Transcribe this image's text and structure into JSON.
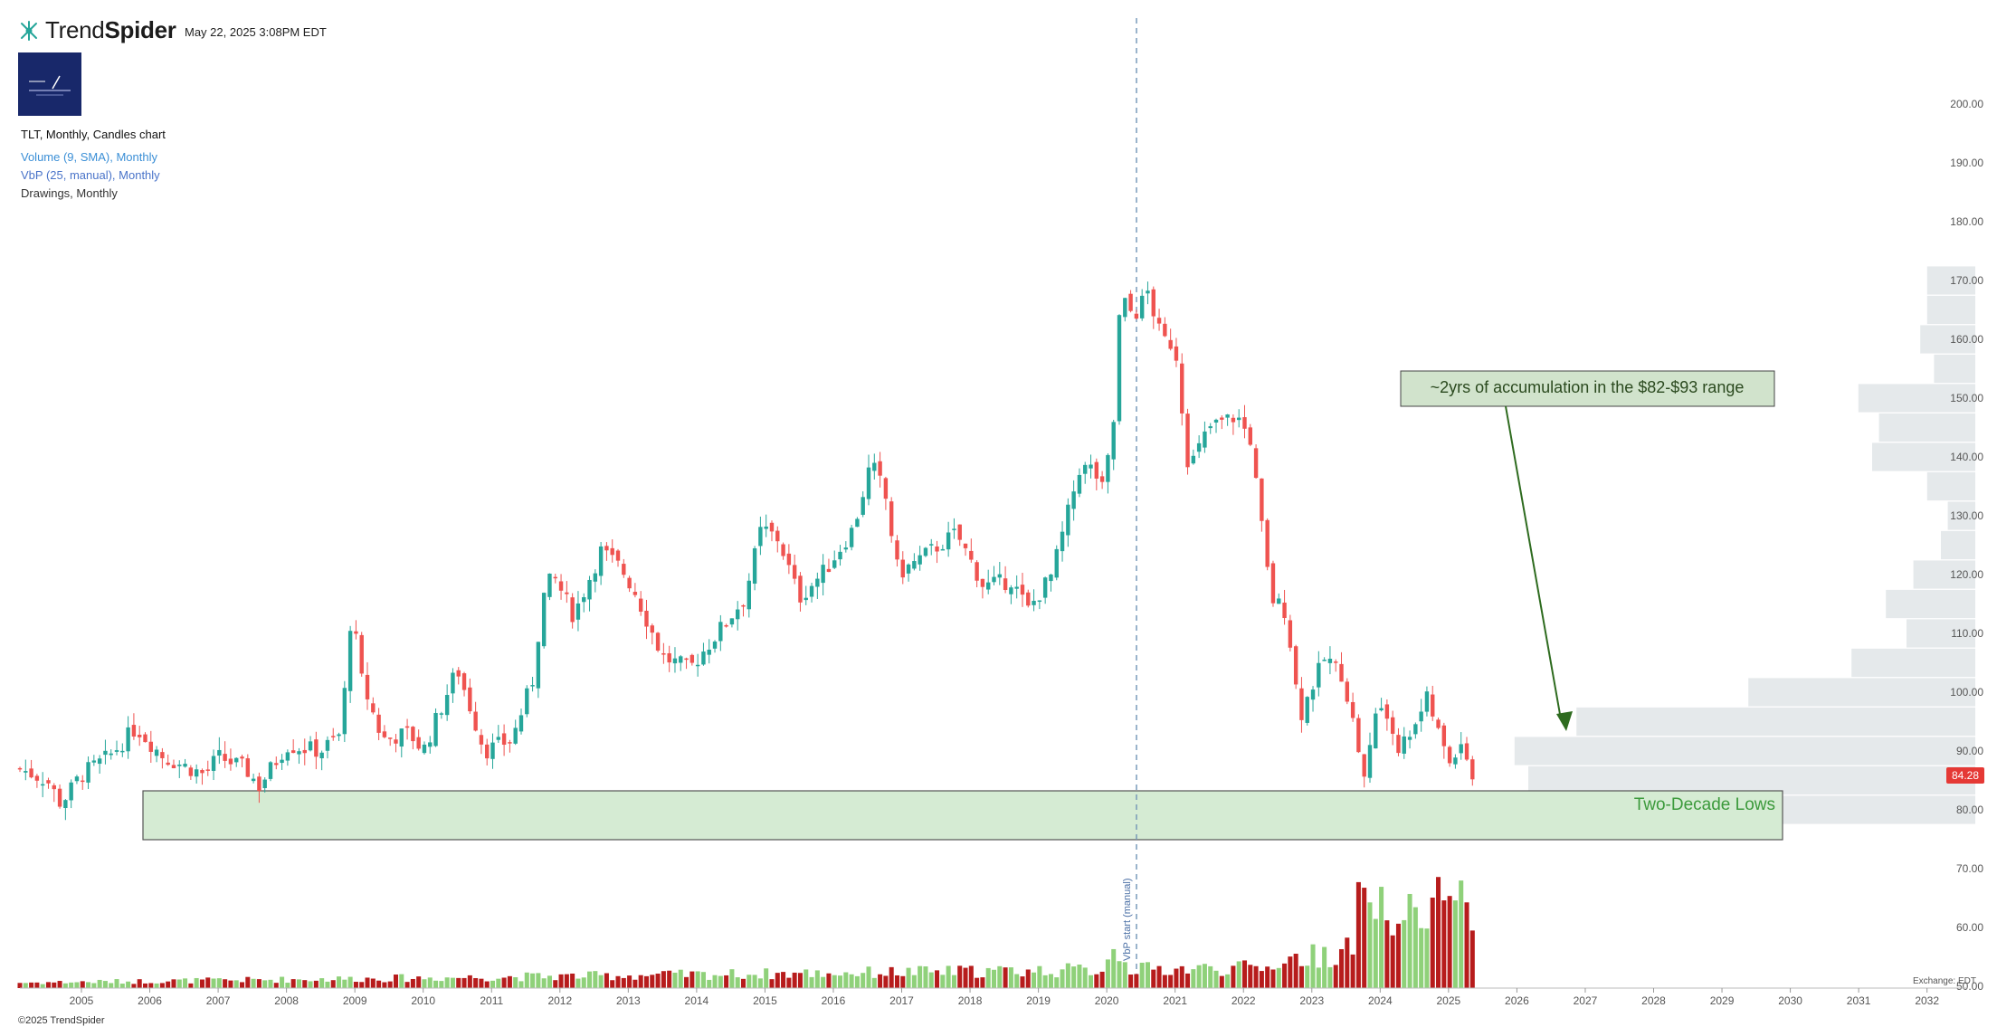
{
  "header": {
    "brand_light": "Trend",
    "brand_bold": "Spider",
    "timestamp": "May 22, 2025 3:08PM EDT",
    "chart_title": "TLT, Monthly, Candles chart",
    "indicator_volume": "Volume (9, SMA), Monthly",
    "indicator_vbp": "VbP (25, manual), Monthly",
    "indicator_drawings": "Drawings, Monthly",
    "copyright": "©2025 TrendSpider",
    "exchange": "Exchange: EDT"
  },
  "icons": {
    "logo": "trendspider-logo-icon",
    "badge": "channel-badge-icon"
  },
  "colors": {
    "up": "#26a69a",
    "down": "#ef5350",
    "vol_up": "#8fd17a",
    "vol_down": "#b71c1c",
    "zone": "#d5ebd3",
    "annotation": "#2e6b1f",
    "vbp": "#dfe3e6",
    "price_tag": "#e53935"
  },
  "annotations": {
    "accumulation": "~2yrs of accumulation in the $82-$93 range",
    "lows": "Two-Decade Lows",
    "vbp_start": "VbP start (manual)",
    "last_price": "84.28"
  },
  "chart_data": {
    "type": "candlestick",
    "title": "TLT, Monthly, Candles chart",
    "y_ticks": [
      "200.00",
      "190.00",
      "180.00",
      "170.00",
      "160.00",
      "150.00",
      "140.00",
      "130.00",
      "120.00",
      "110.00",
      "100.00",
      "90.00",
      "80.00",
      "70.00",
      "60.00",
      "50.00"
    ],
    "x_ticks": [
      "2005",
      "2006",
      "2007",
      "2008",
      "2009",
      "2010",
      "2011",
      "2012",
      "2013",
      "2014",
      "2015",
      "2016",
      "2017",
      "2018",
      "2019",
      "2020",
      "2021",
      "2022",
      "2023",
      "2024",
      "2025",
      "2026",
      "2027",
      "2028",
      "2029",
      "2030",
      "2031",
      "2032"
    ],
    "ylim": [
      46,
      206
    ],
    "xlim": [
      2004.1,
      2032.6
    ],
    "close_path": [
      [
        2004.1,
        87
      ],
      [
        2004.5,
        85
      ],
      [
        2004.7,
        81
      ],
      [
        2005.0,
        86
      ],
      [
        2005.4,
        89
      ],
      [
        2005.8,
        94
      ],
      [
        2006.2,
        89
      ],
      [
        2006.8,
        86
      ],
      [
        2007.0,
        89
      ],
      [
        2007.4,
        87
      ],
      [
        2007.6,
        84
      ],
      [
        2008.0,
        91
      ],
      [
        2008.5,
        90
      ],
      [
        2008.8,
        93
      ],
      [
        2008.95,
        114
      ],
      [
        2009.1,
        102
      ],
      [
        2009.4,
        92
      ],
      [
        2009.8,
        93
      ],
      [
        2010.0,
        90
      ],
      [
        2010.5,
        104
      ],
      [
        2010.7,
        97
      ],
      [
        2010.9,
        90
      ],
      [
        2011.3,
        92
      ],
      [
        2011.6,
        102
      ],
      [
        2011.75,
        116
      ],
      [
        2011.9,
        120
      ],
      [
        2012.2,
        113
      ],
      [
        2012.6,
        124
      ],
      [
        2012.9,
        121
      ],
      [
        2013.1,
        117
      ],
      [
        2013.5,
        106
      ],
      [
        2013.9,
        104
      ],
      [
        2014.3,
        110
      ],
      [
        2014.7,
        116
      ],
      [
        2014.95,
        128
      ],
      [
        2015.2,
        126
      ],
      [
        2015.5,
        116
      ],
      [
        2015.9,
        121
      ],
      [
        2016.3,
        128
      ],
      [
        2016.55,
        139
      ],
      [
        2016.75,
        134
      ],
      [
        2016.95,
        120
      ],
      [
        2017.3,
        123
      ],
      [
        2017.8,
        127
      ],
      [
        2018.2,
        118
      ],
      [
        2018.6,
        119
      ],
      [
        2018.85,
        114
      ],
      [
        2019.2,
        120
      ],
      [
        2019.6,
        138
      ],
      [
        2019.8,
        138
      ],
      [
        2019.95,
        134
      ],
      [
        2020.1,
        146
      ],
      [
        2020.2,
        167
      ],
      [
        2020.4,
        164
      ],
      [
        2020.6,
        168
      ],
      [
        2020.8,
        160
      ],
      [
        2021.0,
        159
      ],
      [
        2021.2,
        138
      ],
      [
        2021.5,
        145
      ],
      [
        2021.9,
        147
      ],
      [
        2022.1,
        143
      ],
      [
        2022.4,
        116
      ],
      [
        2022.6,
        114
      ],
      [
        2022.75,
        104
      ],
      [
        2022.8,
        95
      ],
      [
        2023.0,
        101
      ],
      [
        2023.2,
        106
      ],
      [
        2023.45,
        103
      ],
      [
        2023.6,
        95
      ],
      [
        2023.8,
        84
      ],
      [
        2023.9,
        97
      ],
      [
        2024.1,
        96
      ],
      [
        2024.3,
        90
      ],
      [
        2024.5,
        95
      ],
      [
        2024.7,
        99
      ],
      [
        2024.85,
        93
      ],
      [
        2025.0,
        88
      ],
      [
        2025.2,
        92
      ],
      [
        2025.38,
        84.28
      ]
    ],
    "volume_period": "Monthly",
    "volume_profile_start": "2020"
  }
}
